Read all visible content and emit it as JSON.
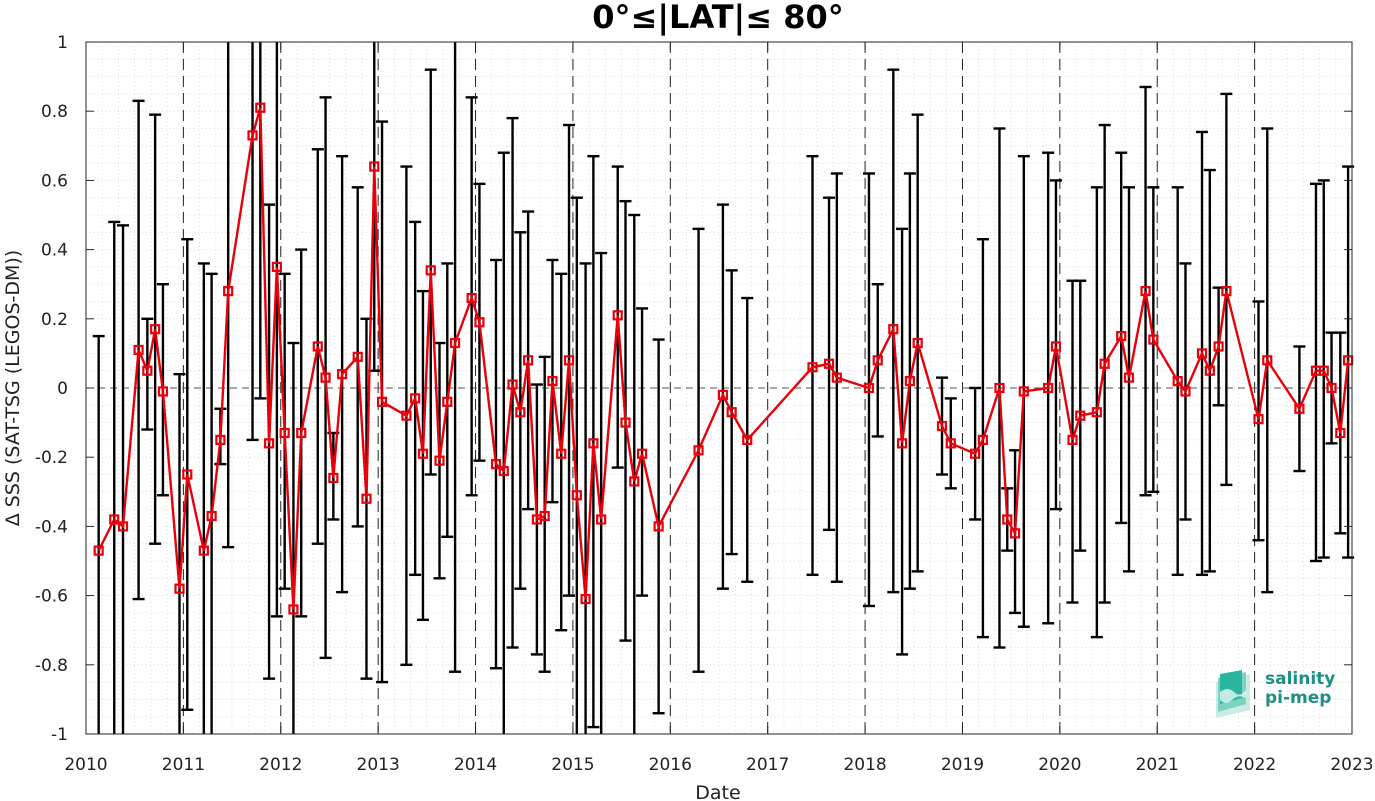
{
  "chart_data": {
    "type": "line",
    "title": "0°≤|LAT|≤ 80°",
    "xlabel": "Date",
    "ylabel": "Δ SSS (SAT-TSG (LEGOS-DM))",
    "xlim": [
      2010,
      2023
    ],
    "ylim": [
      -1,
      1
    ],
    "x_ticks": [
      "2010",
      "2011",
      "2012",
      "2013",
      "2014",
      "2015",
      "2016",
      "2017",
      "2018",
      "2019",
      "2020",
      "2021",
      "2022",
      "2023"
    ],
    "y_ticks": [
      "-1",
      "-0.8",
      "-0.6",
      "-0.4",
      "-0.2",
      "0",
      "0.2",
      "0.4",
      "0.6",
      "0.8",
      "1"
    ],
    "grid": true,
    "year_boundaries": "dashed vertical lines",
    "zero_line": "dashed horizontal line",
    "series": [
      {
        "color": "#e8000b",
        "errorbar_color": "#000000",
        "marker": "square",
        "points": [
          {
            "x": 2010.13,
            "y": -0.47,
            "lo": -1.0,
            "hi": 0.15
          },
          {
            "x": 2010.29,
            "y": -0.38,
            "lo": -1.0,
            "hi": 0.48
          },
          {
            "x": 2010.38,
            "y": -0.4,
            "lo": -1.0,
            "hi": 0.47
          },
          {
            "x": 2010.54,
            "y": 0.11,
            "lo": -0.61,
            "hi": 0.83
          },
          {
            "x": 2010.63,
            "y": 0.05,
            "lo": -0.12,
            "hi": 0.2
          },
          {
            "x": 2010.71,
            "y": 0.17,
            "lo": -0.45,
            "hi": 0.79
          },
          {
            "x": 2010.79,
            "y": -0.01,
            "lo": -0.31,
            "hi": 0.3
          },
          {
            "x": 2010.96,
            "y": -0.58,
            "lo": -1.0,
            "hi": 0.04
          },
          {
            "x": 2011.04,
            "y": -0.25,
            "lo": -0.93,
            "hi": 0.43
          },
          {
            "x": 2011.21,
            "y": -0.47,
            "lo": -1.0,
            "hi": 0.36
          },
          {
            "x": 2011.29,
            "y": -0.37,
            "lo": -1.0,
            "hi": 0.33
          },
          {
            "x": 2011.38,
            "y": -0.15,
            "lo": -0.22,
            "hi": -0.06
          },
          {
            "x": 2011.46,
            "y": 0.28,
            "lo": -0.46,
            "hi": 1.0
          },
          {
            "x": 2011.71,
            "y": 0.73,
            "lo": -0.15,
            "hi": 1.0
          },
          {
            "x": 2011.79,
            "y": 0.81,
            "lo": -0.03,
            "hi": 1.0
          },
          {
            "x": 2011.88,
            "y": -0.16,
            "lo": -0.84,
            "hi": 0.53
          },
          {
            "x": 2011.96,
            "y": 0.35,
            "lo": -0.66,
            "hi": 1.0
          },
          {
            "x": 2012.04,
            "y": -0.13,
            "lo": -0.58,
            "hi": 0.33
          },
          {
            "x": 2012.13,
            "y": -0.64,
            "lo": -1.0,
            "hi": 0.13
          },
          {
            "x": 2012.21,
            "y": -0.13,
            "lo": -0.66,
            "hi": 0.4
          },
          {
            "x": 2012.38,
            "y": 0.12,
            "lo": -0.45,
            "hi": 0.69
          },
          {
            "x": 2012.46,
            "y": 0.03,
            "lo": -0.78,
            "hi": 0.84
          },
          {
            "x": 2012.54,
            "y": -0.26,
            "lo": -0.38,
            "hi": -0.13
          },
          {
            "x": 2012.63,
            "y": 0.04,
            "lo": -0.59,
            "hi": 0.67
          },
          {
            "x": 2012.79,
            "y": 0.09,
            "lo": -0.4,
            "hi": 0.58
          },
          {
            "x": 2012.88,
            "y": -0.32,
            "lo": -0.84,
            "hi": 0.2
          },
          {
            "x": 2012.96,
            "y": 0.64,
            "lo": 0.05,
            "hi": 1.0
          },
          {
            "x": 2013.04,
            "y": -0.04,
            "lo": -0.85,
            "hi": 0.77
          },
          {
            "x": 2013.29,
            "y": -0.08,
            "lo": -0.8,
            "hi": 0.64
          },
          {
            "x": 2013.38,
            "y": -0.03,
            "lo": -0.54,
            "hi": 0.48
          },
          {
            "x": 2013.46,
            "y": -0.19,
            "lo": -0.67,
            "hi": 0.28
          },
          {
            "x": 2013.54,
            "y": 0.34,
            "lo": -0.25,
            "hi": 0.92
          },
          {
            "x": 2013.63,
            "y": -0.21,
            "lo": -0.55,
            "hi": 0.13
          },
          {
            "x": 2013.71,
            "y": -0.04,
            "lo": -0.43,
            "hi": 0.36
          },
          {
            "x": 2013.79,
            "y": 0.13,
            "lo": -0.82,
            "hi": 1.0
          },
          {
            "x": 2013.96,
            "y": 0.26,
            "lo": -0.31,
            "hi": 0.84
          },
          {
            "x": 2014.04,
            "y": 0.19,
            "lo": -0.21,
            "hi": 0.59
          },
          {
            "x": 2014.21,
            "y": -0.22,
            "lo": -0.81,
            "hi": 0.37
          },
          {
            "x": 2014.29,
            "y": -0.24,
            "lo": -1.0,
            "hi": 0.68
          },
          {
            "x": 2014.38,
            "y": 0.01,
            "lo": -0.75,
            "hi": 0.78
          },
          {
            "x": 2014.46,
            "y": -0.07,
            "lo": -0.58,
            "hi": 0.45
          },
          {
            "x": 2014.54,
            "y": 0.08,
            "lo": -0.35,
            "hi": 0.51
          },
          {
            "x": 2014.63,
            "y": -0.38,
            "lo": -0.77,
            "hi": 0.01
          },
          {
            "x": 2014.71,
            "y": -0.37,
            "lo": -0.82,
            "hi": 0.09
          },
          {
            "x": 2014.79,
            "y": 0.02,
            "lo": -0.33,
            "hi": 0.37
          },
          {
            "x": 2014.88,
            "y": -0.19,
            "lo": -0.7,
            "hi": 0.33
          },
          {
            "x": 2014.96,
            "y": 0.08,
            "lo": -0.6,
            "hi": 0.76
          },
          {
            "x": 2015.04,
            "y": -0.31,
            "lo": -1.0,
            "hi": 0.55
          },
          {
            "x": 2015.13,
            "y": -0.61,
            "lo": -1.0,
            "hi": 0.36
          },
          {
            "x": 2015.21,
            "y": -0.16,
            "lo": -0.98,
            "hi": 0.67
          },
          {
            "x": 2015.29,
            "y": -0.38,
            "lo": -1.0,
            "hi": 0.39
          },
          {
            "x": 2015.46,
            "y": 0.21,
            "lo": -0.23,
            "hi": 0.64
          },
          {
            "x": 2015.54,
            "y": -0.1,
            "lo": -0.73,
            "hi": 0.54
          },
          {
            "x": 2015.63,
            "y": -0.27,
            "lo": -1.0,
            "hi": 0.5
          },
          {
            "x": 2015.71,
            "y": -0.19,
            "lo": -0.6,
            "hi": 0.23
          },
          {
            "x": 2015.88,
            "y": -0.4,
            "lo": -0.94,
            "hi": 0.14
          },
          {
            "x": 2016.29,
            "y": -0.18,
            "lo": -0.82,
            "hi": 0.46
          },
          {
            "x": 2016.54,
            "y": -0.02,
            "lo": -0.58,
            "hi": 0.53
          },
          {
            "x": 2016.63,
            "y": -0.07,
            "lo": -0.48,
            "hi": 0.34
          },
          {
            "x": 2016.79,
            "y": -0.15,
            "lo": -0.56,
            "hi": 0.26
          },
          {
            "x": 2017.46,
            "y": 0.06,
            "lo": -0.54,
            "hi": 0.67
          },
          {
            "x": 2017.63,
            "y": 0.07,
            "lo": -0.41,
            "hi": 0.55
          },
          {
            "x": 2017.71,
            "y": 0.03,
            "lo": -0.56,
            "hi": 0.62
          },
          {
            "x": 2018.04,
            "y": 0.0,
            "lo": -0.63,
            "hi": 0.62
          },
          {
            "x": 2018.13,
            "y": 0.08,
            "lo": -0.14,
            "hi": 0.3
          },
          {
            "x": 2018.29,
            "y": 0.17,
            "lo": -0.59,
            "hi": 0.92
          },
          {
            "x": 2018.38,
            "y": -0.16,
            "lo": -0.77,
            "hi": 0.46
          },
          {
            "x": 2018.46,
            "y": 0.02,
            "lo": -0.58,
            "hi": 0.62
          },
          {
            "x": 2018.54,
            "y": 0.13,
            "lo": -0.53,
            "hi": 0.79
          },
          {
            "x": 2018.79,
            "y": -0.11,
            "lo": -0.25,
            "hi": 0.03
          },
          {
            "x": 2018.88,
            "y": -0.16,
            "lo": -0.29,
            "hi": -0.03
          },
          {
            "x": 2019.13,
            "y": -0.19,
            "lo": -0.38,
            "hi": 0.0
          },
          {
            "x": 2019.21,
            "y": -0.15,
            "lo": -0.72,
            "hi": 0.43
          },
          {
            "x": 2019.38,
            "y": 0.0,
            "lo": -0.75,
            "hi": 0.75
          },
          {
            "x": 2019.46,
            "y": -0.38,
            "lo": -0.47,
            "hi": -0.29
          },
          {
            "x": 2019.54,
            "y": -0.42,
            "lo": -0.65,
            "hi": -0.18
          },
          {
            "x": 2019.63,
            "y": -0.01,
            "lo": -0.69,
            "hi": 0.67
          },
          {
            "x": 2019.88,
            "y": 0.0,
            "lo": -0.68,
            "hi": 0.68
          },
          {
            "x": 2019.96,
            "y": 0.12,
            "lo": -0.35,
            "hi": 0.6
          },
          {
            "x": 2020.13,
            "y": -0.15,
            "lo": -0.62,
            "hi": 0.31
          },
          {
            "x": 2020.21,
            "y": -0.08,
            "lo": -0.47,
            "hi": 0.31
          },
          {
            "x": 2020.38,
            "y": -0.07,
            "lo": -0.72,
            "hi": 0.58
          },
          {
            "x": 2020.46,
            "y": 0.07,
            "lo": -0.62,
            "hi": 0.76
          },
          {
            "x": 2020.63,
            "y": 0.15,
            "lo": -0.39,
            "hi": 0.68
          },
          {
            "x": 2020.71,
            "y": 0.03,
            "lo": -0.53,
            "hi": 0.58
          },
          {
            "x": 2020.88,
            "y": 0.28,
            "lo": -0.31,
            "hi": 0.87
          },
          {
            "x": 2020.96,
            "y": 0.14,
            "lo": -0.3,
            "hi": 0.58
          },
          {
            "x": 2021.21,
            "y": 0.02,
            "lo": -0.54,
            "hi": 0.58
          },
          {
            "x": 2021.29,
            "y": -0.01,
            "lo": -0.38,
            "hi": 0.36
          },
          {
            "x": 2021.46,
            "y": 0.1,
            "lo": -0.54,
            "hi": 0.74
          },
          {
            "x": 2021.54,
            "y": 0.05,
            "lo": -0.53,
            "hi": 0.63
          },
          {
            "x": 2021.63,
            "y": 0.12,
            "lo": -0.05,
            "hi": 0.29
          },
          {
            "x": 2021.71,
            "y": 0.28,
            "lo": -0.28,
            "hi": 0.85
          },
          {
            "x": 2022.04,
            "y": -0.09,
            "lo": -0.44,
            "hi": 0.25
          },
          {
            "x": 2022.13,
            "y": 0.08,
            "lo": -0.59,
            "hi": 0.75
          },
          {
            "x": 2022.46,
            "y": -0.06,
            "lo": -0.24,
            "hi": 0.12
          },
          {
            "x": 2022.63,
            "y": 0.05,
            "lo": -0.5,
            "hi": 0.59
          },
          {
            "x": 2022.71,
            "y": 0.05,
            "lo": -0.49,
            "hi": 0.6
          },
          {
            "x": 2022.79,
            "y": 0.0,
            "lo": -0.16,
            "hi": 0.16
          },
          {
            "x": 2022.88,
            "y": -0.13,
            "lo": -0.42,
            "hi": 0.16
          },
          {
            "x": 2022.96,
            "y": 0.08,
            "lo": -0.49,
            "hi": 0.64
          }
        ]
      }
    ]
  },
  "logo": {
    "line1": "salinity",
    "line2": "pi-mep",
    "color": "#1f8f86"
  }
}
